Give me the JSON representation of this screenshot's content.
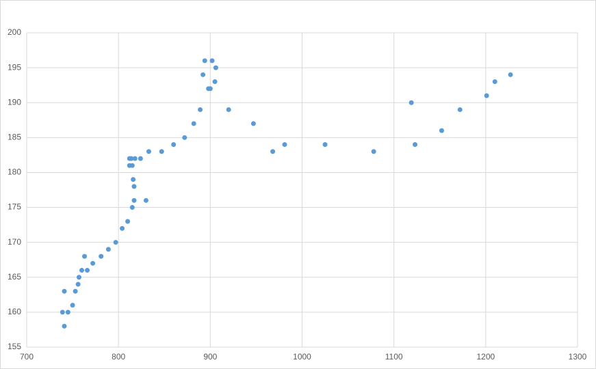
{
  "chart_data": {
    "type": "scatter",
    "color": "#5b9bd5",
    "grid": true,
    "xlim": [
      700,
      1300
    ],
    "xticks": [
      700,
      800,
      900,
      1000,
      1100,
      1200,
      1300
    ],
    "ylim": [
      155,
      200
    ],
    "yticks": [
      155,
      160,
      165,
      170,
      175,
      180,
      185,
      190,
      195,
      200
    ],
    "x": [
      894,
      902,
      906,
      892,
      905,
      898,
      900,
      889,
      920,
      882,
      947,
      872,
      860,
      847,
      833,
      824,
      818,
      812,
      814,
      812,
      815,
      816,
      817,
      817,
      830,
      815,
      810,
      804,
      797,
      789,
      781,
      763,
      772,
      760,
      766,
      757,
      756,
      753,
      741,
      750,
      739,
      745,
      741,
      968,
      981,
      1025,
      1078,
      1119,
      1123,
      1152,
      1172,
      1201,
      1210,
      1227
    ],
    "y": [
      196,
      196,
      195,
      194,
      193,
      192,
      192,
      189,
      189,
      187,
      187,
      185,
      184,
      183,
      183,
      182,
      182,
      182,
      182,
      181,
      181,
      179,
      178,
      176,
      176,
      175,
      173,
      172,
      170,
      169,
      168,
      168,
      167,
      166,
      166,
      165,
      164,
      163,
      163,
      161,
      160,
      160,
      158,
      183,
      184,
      184,
      183,
      190,
      184,
      186,
      189,
      191,
      193,
      194
    ]
  }
}
